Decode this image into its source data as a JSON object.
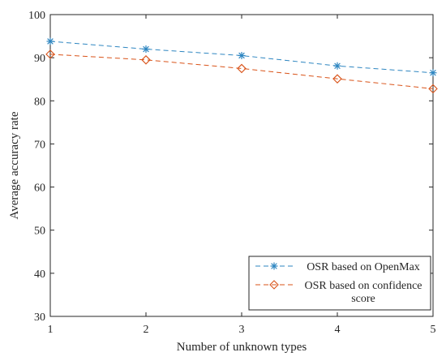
{
  "chart_data": {
    "type": "line",
    "title": "",
    "xlabel": "Number of unknown types",
    "ylabel": "Average accuracy rate",
    "xlim": [
      1,
      5
    ],
    "ylim": [
      30,
      100
    ],
    "xticks": [
      1,
      2,
      3,
      4,
      5
    ],
    "yticks": [
      30,
      40,
      50,
      60,
      70,
      80,
      90,
      100
    ],
    "grid": false,
    "legend_position": "bottom-right",
    "x": [
      1,
      2,
      3,
      4,
      5
    ],
    "series": [
      {
        "name": "OSR based on OpenMax",
        "name_lines": [
          "OSR based on OpenMax"
        ],
        "values": [
          93.8,
          92.0,
          90.5,
          88.1,
          86.5
        ],
        "color": "#2e86c1",
        "marker": "asterisk",
        "line_style": "dashed"
      },
      {
        "name": "OSR based on confidence score",
        "name_lines": [
          "OSR based on confidence",
          "score"
        ],
        "values": [
          90.8,
          89.5,
          87.5,
          85.1,
          82.8
        ],
        "color": "#d95319",
        "marker": "diamond",
        "line_style": "dashed"
      }
    ]
  }
}
